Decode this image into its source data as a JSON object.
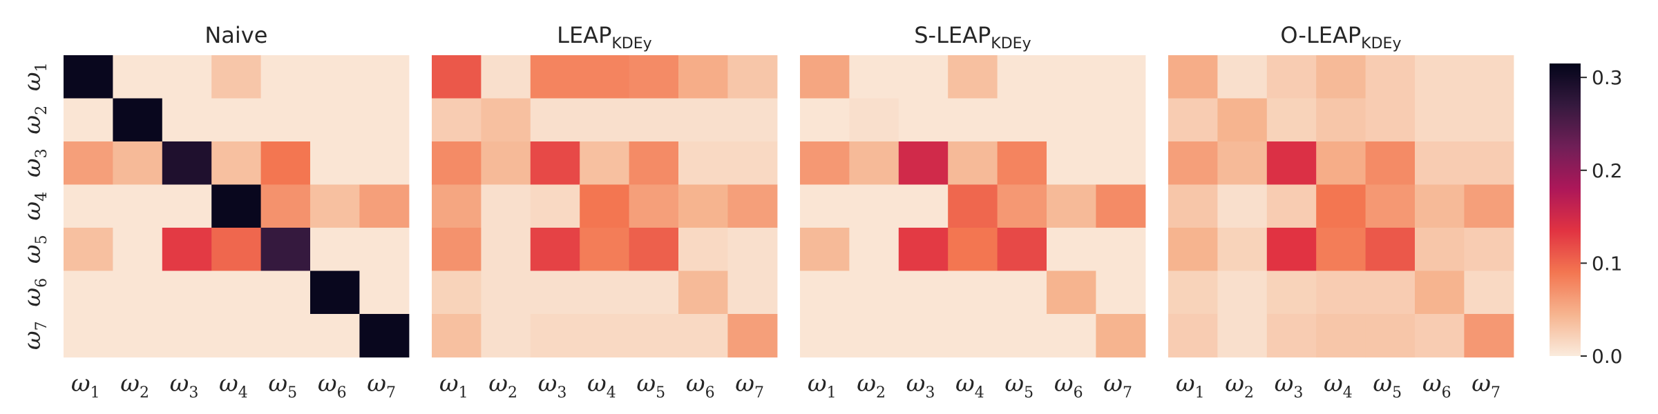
{
  "chart_data": {
    "type": "heatmap",
    "row_labels": [
      {
        "base": "ω",
        "sub": "1"
      },
      {
        "base": "ω",
        "sub": "2"
      },
      {
        "base": "ω",
        "sub": "3"
      },
      {
        "base": "ω",
        "sub": "4"
      },
      {
        "base": "ω",
        "sub": "5"
      },
      {
        "base": "ω",
        "sub": "6"
      },
      {
        "base": "ω",
        "sub": "7"
      }
    ],
    "col_labels": [
      {
        "base": "ω",
        "sub": "1"
      },
      {
        "base": "ω",
        "sub": "2"
      },
      {
        "base": "ω",
        "sub": "3"
      },
      {
        "base": "ω",
        "sub": "4"
      },
      {
        "base": "ω",
        "sub": "5"
      },
      {
        "base": "ω",
        "sub": "6"
      },
      {
        "base": "ω",
        "sub": "7"
      }
    ],
    "colorbar": {
      "min": 0.0,
      "max": 0.315,
      "ticks": [
        0.0,
        0.1,
        0.2,
        0.3
      ],
      "tick_labels": [
        "0.0",
        "0.1",
        "0.2",
        "0.3"
      ],
      "colormap": "rocket_r",
      "stops": [
        "#faebdd",
        "#f6b48f",
        "#f37651",
        "#e13342",
        "#ad1759",
        "#701f57",
        "#35193e",
        "#03051a"
      ]
    },
    "panels": [
      {
        "title": "Naive",
        "title_sub": "",
        "matrix": [
          [
            0.31,
            0.005,
            0.005,
            0.03,
            0.005,
            0.005,
            0.005
          ],
          [
            0.005,
            0.31,
            0.005,
            0.005,
            0.005,
            0.005,
            0.005
          ],
          [
            0.06,
            0.04,
            0.29,
            0.035,
            0.09,
            0.005,
            0.005
          ],
          [
            0.005,
            0.005,
            0.005,
            0.31,
            0.07,
            0.035,
            0.06
          ],
          [
            0.035,
            0.005,
            0.13,
            0.1,
            0.27,
            0.005,
            0.005
          ],
          [
            0.005,
            0.005,
            0.005,
            0.005,
            0.005,
            0.31,
            0.005
          ],
          [
            0.005,
            0.005,
            0.005,
            0.005,
            0.005,
            0.005,
            0.31
          ]
        ]
      },
      {
        "title": "LEAP",
        "title_sub": "KDEy",
        "matrix": [
          [
            0.11,
            0.01,
            0.08,
            0.08,
            0.075,
            0.05,
            0.03
          ],
          [
            0.025,
            0.035,
            0.01,
            0.01,
            0.01,
            0.01,
            0.01
          ],
          [
            0.075,
            0.04,
            0.12,
            0.035,
            0.075,
            0.015,
            0.015
          ],
          [
            0.055,
            0.01,
            0.015,
            0.09,
            0.06,
            0.045,
            0.06
          ],
          [
            0.07,
            0.01,
            0.125,
            0.085,
            0.105,
            0.015,
            0.01
          ],
          [
            0.02,
            0.01,
            0.01,
            0.01,
            0.01,
            0.04,
            0.01
          ],
          [
            0.035,
            0.01,
            0.015,
            0.015,
            0.015,
            0.015,
            0.06
          ]
        ]
      },
      {
        "title": "S-LEAP",
        "title_sub": "KDEy",
        "matrix": [
          [
            0.055,
            0.005,
            0.005,
            0.035,
            0.005,
            0.005,
            0.005
          ],
          [
            0.005,
            0.01,
            0.005,
            0.005,
            0.005,
            0.005,
            0.005
          ],
          [
            0.065,
            0.04,
            0.15,
            0.04,
            0.08,
            0.005,
            0.005
          ],
          [
            0.005,
            0.005,
            0.005,
            0.1,
            0.065,
            0.04,
            0.075
          ],
          [
            0.04,
            0.005,
            0.13,
            0.09,
            0.12,
            0.005,
            0.005
          ],
          [
            0.005,
            0.005,
            0.005,
            0.005,
            0.005,
            0.045,
            0.005
          ],
          [
            0.005,
            0.005,
            0.005,
            0.005,
            0.005,
            0.005,
            0.045
          ]
        ]
      },
      {
        "title": "O-LEAP",
        "title_sub": "KDEy",
        "matrix": [
          [
            0.05,
            0.01,
            0.025,
            0.04,
            0.025,
            0.015,
            0.015
          ],
          [
            0.025,
            0.045,
            0.02,
            0.03,
            0.025,
            0.015,
            0.015
          ],
          [
            0.06,
            0.04,
            0.14,
            0.05,
            0.075,
            0.025,
            0.025
          ],
          [
            0.03,
            0.01,
            0.025,
            0.09,
            0.065,
            0.04,
            0.06
          ],
          [
            0.045,
            0.02,
            0.135,
            0.085,
            0.11,
            0.03,
            0.025
          ],
          [
            0.02,
            0.01,
            0.02,
            0.025,
            0.025,
            0.045,
            0.015
          ],
          [
            0.025,
            0.01,
            0.025,
            0.03,
            0.03,
            0.025,
            0.065
          ]
        ]
      }
    ]
  }
}
